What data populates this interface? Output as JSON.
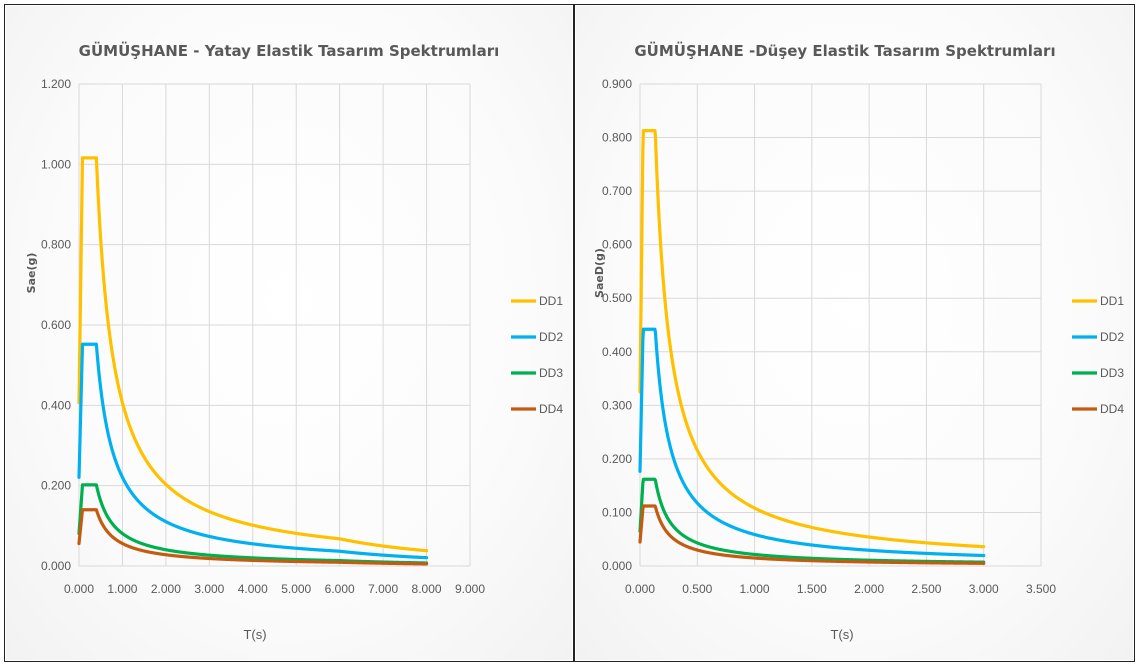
{
  "chart_data": [
    {
      "type": "line",
      "title": "GÜMÜŞHANE - Yatay Elastik Tasarım Spektrumları",
      "xlabel": "T(s)",
      "ylabel": "Sae(g)",
      "xlim": [
        0,
        9
      ],
      "ylim": [
        0,
        1.2
      ],
      "xticks": [
        "0.000",
        "1.000",
        "2.000",
        "3.000",
        "4.000",
        "5.000",
        "6.000",
        "7.000",
        "8.000",
        "9.000"
      ],
      "yticks": [
        "0.000",
        "0.200",
        "0.400",
        "0.600",
        "0.800",
        "1.000",
        "1.200"
      ],
      "grid": true,
      "legend_position": "right",
      "series": [
        {
          "name": "DD1",
          "color": "#FFC000",
          "sds": 1.016,
          "ta": 0.08,
          "tb": 0.4,
          "tl": 6.0,
          "tmax": 8.0
        },
        {
          "name": "DD2",
          "color": "#00B0F0",
          "sds": 0.552,
          "ta": 0.08,
          "tb": 0.4,
          "tl": 6.0,
          "tmax": 8.0
        },
        {
          "name": "DD3",
          "color": "#00B050",
          "sds": 0.202,
          "ta": 0.08,
          "tb": 0.4,
          "tl": 6.0,
          "tmax": 8.0
        },
        {
          "name": "DD4",
          "color": "#C55A11",
          "sds": 0.14,
          "ta": 0.08,
          "tb": 0.4,
          "tl": 6.0,
          "tmax": 8.0
        }
      ]
    },
    {
      "type": "line",
      "title": "GÜMÜŞHANE -Düşey Elastik Tasarım Spektrumları",
      "xlabel": "T(s)",
      "ylabel": "SaeD(g)",
      "xlim": [
        0,
        3.5
      ],
      "ylim": [
        0,
        0.9
      ],
      "xticks": [
        "0.000",
        "0.500",
        "1.000",
        "1.500",
        "2.000",
        "2.500",
        "3.000",
        "3.500"
      ],
      "yticks": [
        "0.000",
        "0.100",
        "0.200",
        "0.300",
        "0.400",
        "0.500",
        "0.600",
        "0.700",
        "0.800",
        "0.900"
      ],
      "grid": true,
      "legend_position": "right",
      "series": [
        {
          "name": "DD1",
          "color": "#FFC000",
          "sds": 0.813,
          "ta": 0.027,
          "tb": 0.133,
          "tmax": 3.0
        },
        {
          "name": "DD2",
          "color": "#00B0F0",
          "sds": 0.442,
          "ta": 0.027,
          "tb": 0.133,
          "tmax": 3.0
        },
        {
          "name": "DD3",
          "color": "#00B050",
          "sds": 0.162,
          "ta": 0.027,
          "tb": 0.133,
          "tmax": 3.0
        },
        {
          "name": "DD4",
          "color": "#C55A11",
          "sds": 0.112,
          "ta": 0.027,
          "tb": 0.133,
          "tmax": 3.0
        }
      ]
    }
  ]
}
